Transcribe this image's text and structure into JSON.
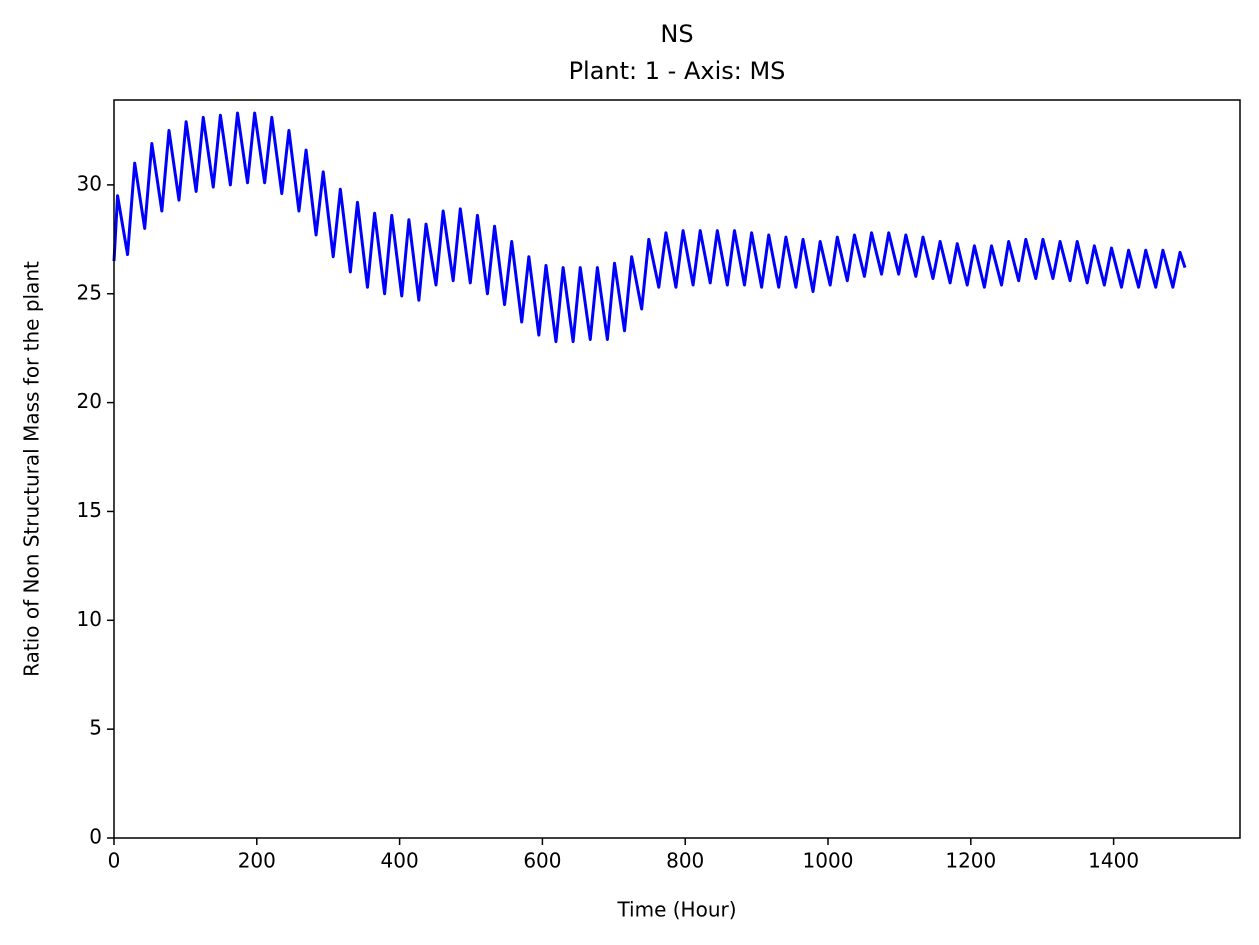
{
  "chart_data": {
    "type": "line",
    "title": "NS",
    "subtitle": "Plant: 1 - Axis: MS",
    "x_label": "Time (Hour)",
    "y_label": "Ratio of Non Structural Mass for the plant",
    "x": [
      0,
      5,
      19,
      29,
      43,
      53,
      67,
      77,
      91,
      101,
      115,
      125,
      139,
      149,
      163,
      173,
      187,
      197,
      211,
      221,
      235,
      245,
      259,
      269,
      283,
      293,
      307,
      317,
      331,
      341,
      355,
      365,
      379,
      389,
      403,
      413,
      427,
      437,
      451,
      461,
      475,
      485,
      499,
      509,
      523,
      533,
      547,
      557,
      571,
      581,
      595,
      605,
      619,
      629,
      643,
      653,
      667,
      677,
      691,
      701,
      715,
      725,
      739,
      749,
      763,
      773,
      787,
      797,
      811,
      821,
      835,
      845,
      859,
      869,
      883,
      893,
      907,
      917,
      931,
      941,
      955,
      965,
      979,
      989,
      1003,
      1013,
      1027,
      1037,
      1051,
      1061,
      1075,
      1085,
      1099,
      1109,
      1123,
      1133,
      1147,
      1157,
      1171,
      1181,
      1195,
      1205,
      1219,
      1229,
      1243,
      1253,
      1267,
      1277,
      1291,
      1301,
      1315,
      1325,
      1339,
      1349,
      1363,
      1373,
      1387,
      1397,
      1411,
      1421,
      1435,
      1445,
      1459,
      1469,
      1483,
      1493,
      1500
    ],
    "series": [
      {
        "name": "NS",
        "color": "#0000ff",
        "values": [
          26.5,
          29.5,
          26.8,
          31.0,
          28.0,
          31.9,
          28.8,
          32.5,
          29.3,
          32.9,
          29.7,
          33.1,
          29.9,
          33.2,
          30.0,
          33.3,
          30.1,
          33.3,
          30.1,
          33.1,
          29.6,
          32.5,
          28.8,
          31.6,
          27.7,
          30.6,
          26.7,
          29.8,
          26.0,
          29.2,
          25.3,
          28.7,
          25.0,
          28.6,
          24.9,
          28.4,
          24.7,
          28.2,
          25.4,
          28.8,
          25.6,
          28.9,
          25.5,
          28.6,
          25.0,
          28.1,
          24.5,
          27.4,
          23.7,
          26.7,
          23.1,
          26.3,
          22.8,
          26.2,
          22.8,
          26.2,
          22.9,
          26.2,
          22.9,
          26.4,
          23.3,
          26.7,
          24.3,
          27.5,
          25.3,
          27.8,
          25.3,
          27.9,
          25.4,
          27.9,
          25.5,
          27.9,
          25.4,
          27.9,
          25.4,
          27.8,
          25.3,
          27.7,
          25.3,
          27.6,
          25.3,
          27.5,
          25.1,
          27.4,
          25.4,
          27.6,
          25.6,
          27.7,
          25.8,
          27.8,
          25.9,
          27.8,
          25.9,
          27.7,
          25.8,
          27.6,
          25.7,
          27.4,
          25.5,
          27.3,
          25.4,
          27.2,
          25.3,
          27.2,
          25.4,
          27.4,
          25.6,
          27.5,
          25.7,
          27.5,
          25.7,
          27.4,
          25.6,
          27.4,
          25.5,
          27.2,
          25.4,
          27.1,
          25.3,
          27.0,
          25.3,
          27.0,
          25.3,
          27.0,
          25.3,
          26.9,
          26.2
        ]
      }
    ],
    "xlim": [
      0,
      1577
    ],
    "ylim": [
      0,
      33.9
    ],
    "xticks": [
      0,
      200,
      400,
      600,
      800,
      1000,
      1200,
      1400
    ],
    "yticks": [
      0,
      5,
      10,
      15,
      20,
      25,
      30
    ],
    "grid": false
  }
}
